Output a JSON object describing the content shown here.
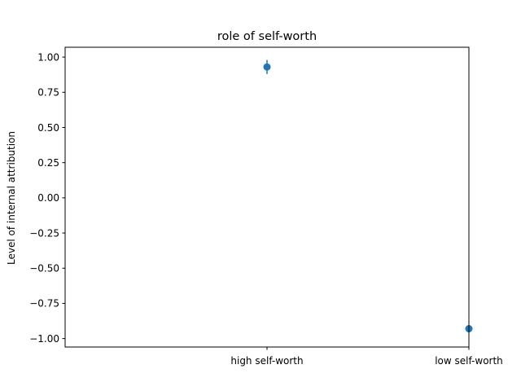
{
  "chart_data": {
    "type": "scatter",
    "title": "role of self-worth",
    "xlabel": "",
    "ylabel": "Level of internal attribution",
    "categories": [
      "high self-worth",
      "low self-worth"
    ],
    "series": [
      {
        "values": [
          0.93,
          -0.93
        ],
        "error": [
          0.05,
          0.0
        ]
      }
    ],
    "ylim": [
      -1.06,
      1.07
    ],
    "yticks": [
      1.0,
      0.75,
      0.5,
      0.25,
      0.0,
      -0.25,
      -0.5,
      -0.75,
      -1.0
    ],
    "ytick_labels": [
      "1.00",
      "0.75",
      "0.50",
      "0.25",
      "0.00",
      "−0.25",
      "−0.50",
      "−0.75",
      "−1.00"
    ],
    "xlim": [
      -1.0,
      1.0
    ],
    "x_positions": [
      0.0,
      1.0
    ],
    "grid": false,
    "colors": {
      "marker": "#1f77b4",
      "axis": "#000000"
    }
  }
}
